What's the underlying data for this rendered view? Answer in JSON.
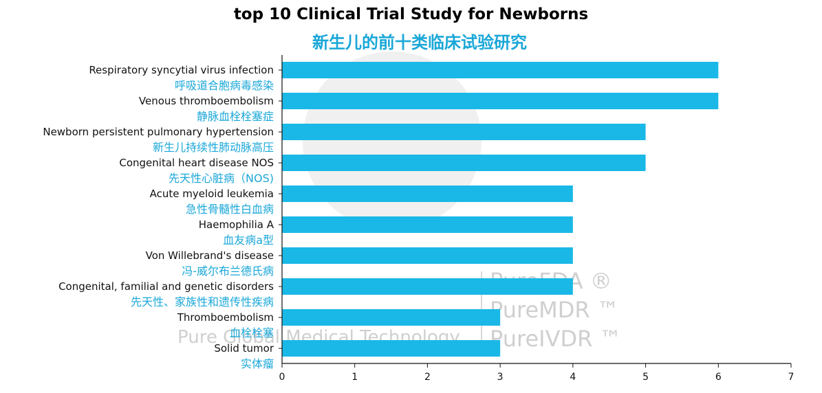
{
  "watermark": {
    "lines": [
      "PureFDA ®",
      "PureMDR ™",
      "PureIVDR ™"
    ],
    "company": "Pure Global Medical Technology"
  },
  "chart_data": {
    "type": "bar",
    "orientation": "horizontal",
    "title": "top 10 Clinical Trial Study for Newborns",
    "subtitle": "新生儿的前十类临床试验研究",
    "xlabel": "",
    "ylabel": "",
    "xlim": [
      0,
      7
    ],
    "xticks": [
      0,
      1,
      2,
      3,
      4,
      5,
      6,
      7
    ],
    "grid": false,
    "bar_color": "#1ab8e6",
    "label_color_zh": "#1aa7d8",
    "categories": [
      {
        "en": "Respiratory syncytial virus infection",
        "zh": "呼吸道合胞病毒感染"
      },
      {
        "en": "Venous thromboembolism",
        "zh": "静脉血栓栓塞症"
      },
      {
        "en": "Newborn persistent pulmonary hypertension",
        "zh": "新生儿持续性肺动脉高压"
      },
      {
        "en": "Congenital heart disease NOS",
        "zh": "先天性心脏病（NOS)"
      },
      {
        "en": "Acute myeloid leukemia",
        "zh": "急性骨髓性白血病"
      },
      {
        "en": "Haemophilia A",
        "zh": "血友病a型"
      },
      {
        "en": "Von Willebrand's disease",
        "zh": "冯-威尔布兰德氏病"
      },
      {
        "en": "Congenital, familial and genetic disorders",
        "zh": "先天性、家族性和遗传性疾病"
      },
      {
        "en": "Thromboembolism",
        "zh": "血栓栓塞"
      },
      {
        "en": "Solid tumor",
        "zh": "实体瘤"
      }
    ],
    "values": [
      6,
      6,
      5,
      5,
      4,
      4,
      4,
      4,
      3,
      3
    ]
  }
}
